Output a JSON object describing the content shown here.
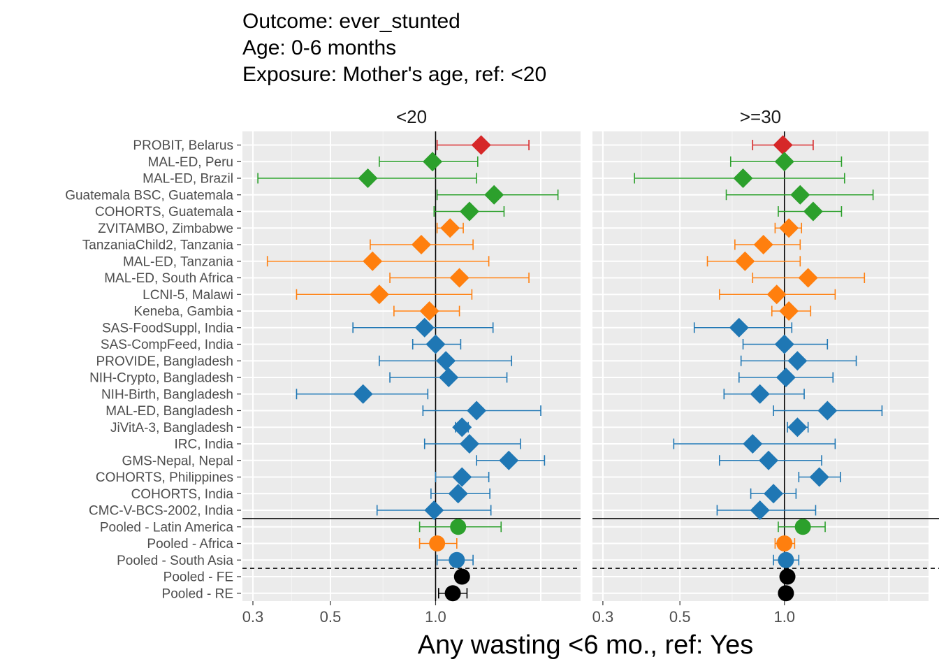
{
  "chart_data": {
    "type": "forest",
    "title_lines": [
      "Outcome: ever_stunted",
      "Age: 0-6 months",
      "Exposure: Mother's age, ref: <20"
    ],
    "xlabel": "Any wasting  <6 mo., ref: Yes",
    "x_scale": "log",
    "xlim": [
      0.28,
      2.6
    ],
    "x_ticks": [
      0.3,
      0.5,
      1.0
    ],
    "x_tick_labels": [
      "0.3",
      "0.5",
      "1.0"
    ],
    "reference_line": 1.0,
    "grid": true,
    "colors": {
      "Europe": "#d62728",
      "Latin America": "#2ca02c",
      "Africa": "#ff7f0e",
      "South Asia": "#1f77b4",
      "Overall": "#000000"
    },
    "rows": [
      "PROBIT, Belarus",
      "MAL-ED, Peru",
      "MAL-ED, Brazil",
      "Guatemala BSC, Guatemala",
      "COHORTS, Guatemala",
      "ZVITAMBO, Zimbabwe",
      "TanzaniaChild2, Tanzania",
      "MAL-ED, Tanzania",
      "MAL-ED, South Africa",
      "LCNI-5, Malawi",
      "Keneba, Gambia",
      "SAS-FoodSuppl, India",
      "SAS-CompFeed, India",
      "PROVIDE, Bangladesh",
      "NIH-Crypto, Bangladesh",
      "NIH-Birth, Bangladesh",
      "MAL-ED, Bangladesh",
      "JiVitA-3, Bangladesh",
      "IRC, India",
      "GMS-Nepal, Nepal",
      "COHORTS, Philippines",
      "COHORTS, India",
      "CMC-V-BCS-2002, India",
      "Pooled - Latin America",
      "Pooled - Africa",
      "Pooled - South Asia",
      "Pooled - FE",
      "Pooled - RE"
    ],
    "row_region": [
      "Europe",
      "Latin America",
      "Latin America",
      "Latin America",
      "Latin America",
      "Africa",
      "Africa",
      "Africa",
      "Africa",
      "Africa",
      "Africa",
      "South Asia",
      "South Asia",
      "South Asia",
      "South Asia",
      "South Asia",
      "South Asia",
      "South Asia",
      "South Asia",
      "South Asia",
      "South Asia",
      "South Asia",
      "South Asia",
      "Latin America",
      "Africa",
      "South Asia",
      "Overall",
      "Overall"
    ],
    "row_shape": [
      "diamond",
      "diamond",
      "diamond",
      "diamond",
      "diamond",
      "diamond",
      "diamond",
      "diamond",
      "diamond",
      "diamond",
      "diamond",
      "diamond",
      "diamond",
      "diamond",
      "diamond",
      "diamond",
      "diamond",
      "diamond",
      "diamond",
      "diamond",
      "diamond",
      "diamond",
      "diamond",
      "circle",
      "circle",
      "circle",
      "circle",
      "circle"
    ],
    "solid_separator_after_row": 22,
    "dashed_separator_after_row": 25,
    "panels": [
      {
        "label": "<20",
        "estimates": [
          [
            1.35,
            1.01,
            1.85
          ],
          [
            0.98,
            0.69,
            1.32
          ],
          [
            0.64,
            0.31,
            1.31
          ],
          [
            1.47,
            1.01,
            2.24
          ],
          [
            1.25,
            0.99,
            1.57
          ],
          [
            1.1,
            1.01,
            1.2
          ],
          [
            0.91,
            0.65,
            1.28
          ],
          [
            0.66,
            0.33,
            1.42
          ],
          [
            1.17,
            0.74,
            1.85
          ],
          [
            0.69,
            0.4,
            1.27
          ],
          [
            0.96,
            0.76,
            1.17
          ],
          [
            0.93,
            0.58,
            1.46
          ],
          [
            1.0,
            0.86,
            1.18
          ],
          [
            1.07,
            0.69,
            1.65
          ],
          [
            1.09,
            0.74,
            1.6
          ],
          [
            0.62,
            0.4,
            0.95
          ],
          [
            1.31,
            0.92,
            2.0
          ],
          [
            1.19,
            1.14,
            1.24
          ],
          [
            1.25,
            0.93,
            1.75
          ],
          [
            1.62,
            1.31,
            2.05
          ],
          [
            1.19,
            1.0,
            1.42
          ],
          [
            1.16,
            0.97,
            1.43
          ],
          [
            0.99,
            0.68,
            1.44
          ],
          [
            1.16,
            0.9,
            1.54
          ],
          [
            1.01,
            0.9,
            1.15
          ],
          [
            1.15,
            1.01,
            1.28
          ],
          [
            1.19,
            1.19,
            1.19
          ],
          [
            1.12,
            1.02,
            1.23
          ]
        ]
      },
      {
        "label": ">=30",
        "estimates": [
          [
            0.99,
            0.81,
            1.21
          ],
          [
            1.0,
            0.7,
            1.46
          ],
          [
            0.76,
            0.37,
            1.49
          ],
          [
            1.11,
            0.68,
            1.8
          ],
          [
            1.21,
            0.96,
            1.46
          ],
          [
            1.03,
            0.94,
            1.12
          ],
          [
            0.87,
            0.72,
            1.11
          ],
          [
            0.77,
            0.6,
            1.11
          ],
          [
            1.17,
            0.81,
            1.7
          ],
          [
            0.95,
            0.65,
            1.4
          ],
          [
            1.03,
            0.92,
            1.19
          ],
          [
            0.74,
            0.55,
            1.05
          ],
          [
            1.0,
            0.76,
            1.33
          ],
          [
            1.09,
            0.75,
            1.61
          ],
          [
            1.01,
            0.74,
            1.38
          ],
          [
            0.85,
            0.67,
            1.14
          ],
          [
            1.33,
            0.93,
            1.91
          ],
          [
            1.09,
            1.02,
            1.17
          ],
          [
            0.81,
            0.48,
            1.4
          ],
          [
            0.9,
            0.65,
            1.28
          ],
          [
            1.26,
            1.1,
            1.45
          ],
          [
            0.93,
            0.8,
            1.08
          ],
          [
            0.85,
            0.64,
            1.23
          ],
          [
            1.13,
            0.96,
            1.31
          ],
          [
            1.0,
            0.94,
            1.07
          ],
          [
            1.01,
            0.93,
            1.1
          ],
          [
            1.02,
            1.02,
            1.02
          ],
          [
            1.01,
            0.98,
            1.04
          ]
        ]
      }
    ]
  }
}
